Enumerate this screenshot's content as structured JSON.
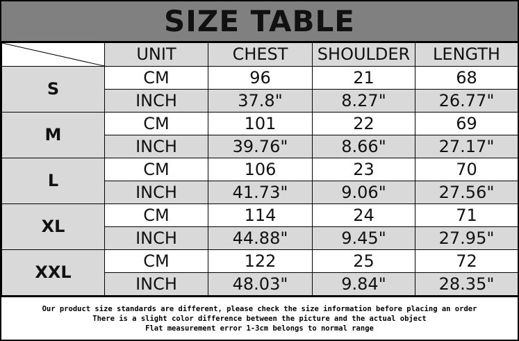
{
  "title": "SIZE TABLE",
  "headers": [
    "UNIT",
    "CHEST",
    "SHOULDER",
    "LENGTH"
  ],
  "rows": [
    {
      "size": "S",
      "cm": {
        "unit": "CM",
        "chest": "96",
        "shoulder": "21",
        "length": "68"
      },
      "inch": {
        "unit": "INCH",
        "chest": "37.8\"",
        "shoulder": "8.27\"",
        "length": "26.77\""
      }
    },
    {
      "size": "M",
      "cm": {
        "unit": "CM",
        "chest": "101",
        "shoulder": "22",
        "length": "69"
      },
      "inch": {
        "unit": "INCH",
        "chest": "39.76\"",
        "shoulder": "8.66\"",
        "length": "27.17\""
      }
    },
    {
      "size": "L",
      "cm": {
        "unit": "CM",
        "chest": "106",
        "shoulder": "23",
        "length": "70"
      },
      "inch": {
        "unit": "INCH",
        "chest": "41.73\"",
        "shoulder": "9.06\"",
        "length": "27.56\""
      }
    },
    {
      "size": "XL",
      "cm": {
        "unit": "CM",
        "chest": "114",
        "shoulder": "24",
        "length": "71"
      },
      "inch": {
        "unit": "INCH",
        "chest": "44.88\"",
        "shoulder": "9.45\"",
        "length": "27.95\""
      }
    },
    {
      "size": "XXL",
      "cm": {
        "unit": "CM",
        "chest": "122",
        "shoulder": "25",
        "length": "72"
      },
      "inch": {
        "unit": "INCH",
        "chest": "48.03\"",
        "shoulder": "9.84\"",
        "length": "28.35\""
      }
    }
  ],
  "notes": [
    "Our product size standards are different, please check the size information before placing an order",
    "There is a slight color difference between the picture and the actual object",
    "Flat measurement error 1-3cm belongs to normal range"
  ]
}
